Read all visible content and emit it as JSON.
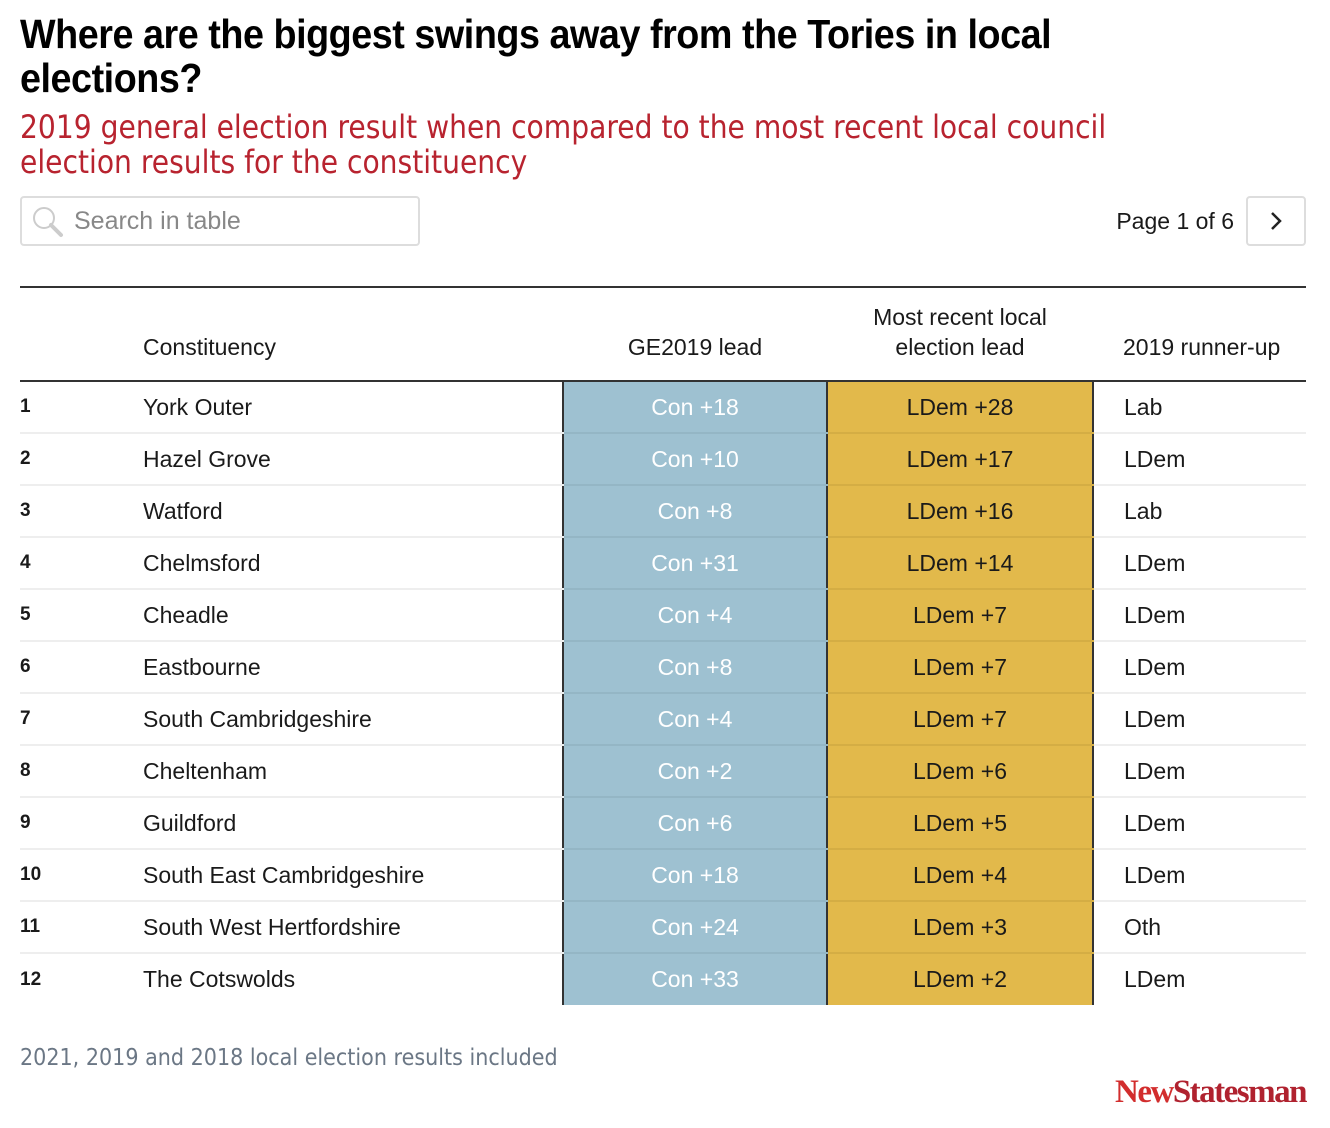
{
  "title": "Where are the biggest swings away from the Tories in local elections?",
  "subtitle": "2019 general election result when compared to the most recent local council election results for the constituency",
  "search": {
    "placeholder": "Search in table"
  },
  "pagination": {
    "label": "Page 1 of 6"
  },
  "colors": {
    "con": "#9ec1d1",
    "ldem": "#e2b94b",
    "accent": "#b8232f"
  },
  "chart_data": {
    "type": "table",
    "columns": [
      "",
      "Constituency",
      "GE2019 lead",
      "Most recent local election lead",
      "2019 runner-up"
    ],
    "rows": [
      [
        "1",
        "York Outer",
        "Con +18",
        "LDem +28",
        "Lab"
      ],
      [
        "2",
        "Hazel Grove",
        "Con +10",
        "LDem +17",
        "LDem"
      ],
      [
        "3",
        "Watford",
        "Con +8",
        "LDem +16",
        "Lab"
      ],
      [
        "4",
        "Chelmsford",
        "Con +31",
        "LDem +14",
        "LDem"
      ],
      [
        "5",
        "Cheadle",
        "Con +4",
        "LDem +7",
        "LDem"
      ],
      [
        "6",
        "Eastbourne",
        "Con +8",
        "LDem +7",
        "LDem"
      ],
      [
        "7",
        "South Cambridgeshire",
        "Con +4",
        "LDem +7",
        "LDem"
      ],
      [
        "8",
        "Cheltenham",
        "Con +2",
        "LDem +6",
        "LDem"
      ],
      [
        "9",
        "Guildford",
        "Con +6",
        "LDem +5",
        "LDem"
      ],
      [
        "10",
        "South East Cambridgeshire",
        "Con +18",
        "LDem +4",
        "LDem"
      ],
      [
        "11",
        "South West Hertfordshire",
        "Con +24",
        "LDem +3",
        "Oth"
      ],
      [
        "12",
        "The Cotswolds",
        "Con +33",
        "LDem +2",
        "LDem"
      ]
    ]
  },
  "note": "2021, 2019 and 2018 local election results included",
  "logo": {
    "part1": "New",
    "part2": "Statesman"
  }
}
